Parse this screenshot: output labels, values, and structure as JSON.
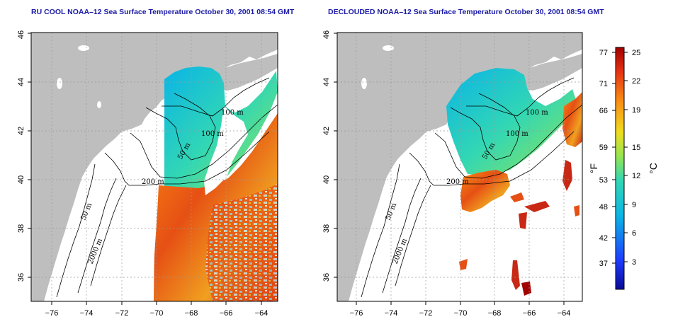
{
  "panels": [
    {
      "title": "RU COOL NOAA–12 Sea Surface Temperature October 30, 2001 08:54 GMT"
    },
    {
      "title": "DECLOUDED NOAA–12 Sea Surface Temperature October 30, 2001 08:54 GMT"
    }
  ],
  "axes": {
    "lon_ticks": [
      "−76",
      "−74",
      "−72",
      "−70",
      "−68",
      "−66",
      "−64"
    ],
    "lat_ticks": [
      "36",
      "38",
      "40",
      "42",
      "44",
      "46"
    ],
    "lon_range": [
      -77.0,
      -63.0
    ],
    "lat_range": [
      35.0,
      46.0
    ],
    "grid": true
  },
  "contour_labels": [
    "100 m",
    "100 m",
    "50 m",
    "200 m",
    "50 m",
    "2000 m"
  ],
  "colorbar": {
    "fahrenheit_unit": "°F",
    "celsius_unit": "°C",
    "fahrenheit_ticks": [
      "77",
      "71",
      "66",
      "59",
      "53",
      "48",
      "42",
      "37"
    ],
    "celsius_ticks": [
      "25",
      "22",
      "19",
      "15",
      "12",
      "9",
      "6",
      "3"
    ],
    "range_c": [
      0,
      26
    ]
  },
  "colors": {
    "land": "#bebebe",
    "title": "#1a1aa8",
    "cold": "#0a0a96",
    "cool": "#0ab4e6",
    "mid": "#32d7b4",
    "warm": "#f0dc1e",
    "hot": "#e65014",
    "max": "#a00000"
  }
}
